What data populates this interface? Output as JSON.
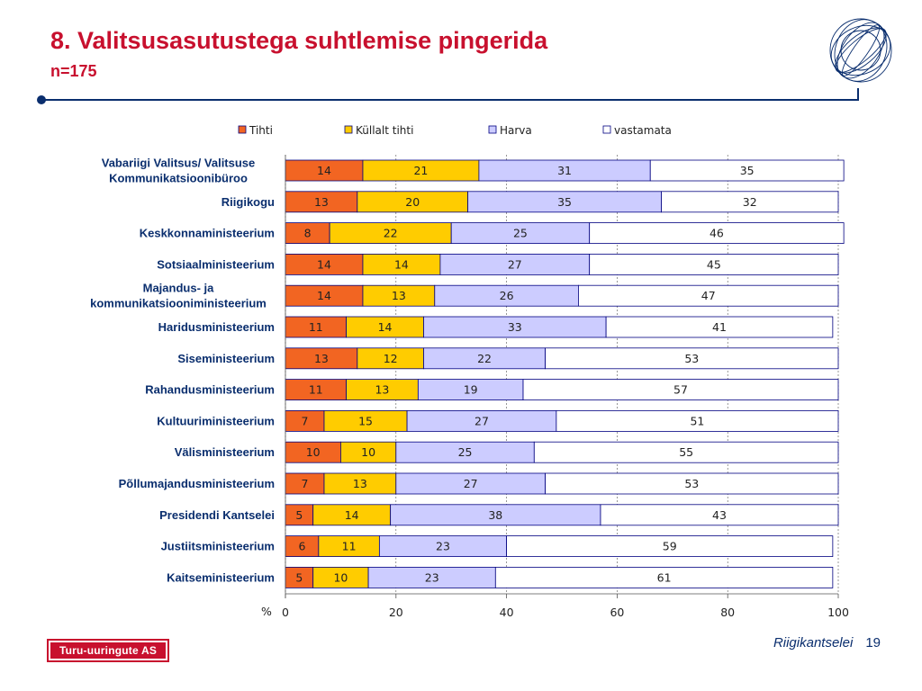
{
  "slide": {
    "title": "8. Valitsusasutustega suhtlemise pingerida",
    "subtitle": "n=175",
    "footer_org": "Riigikantselei",
    "page_number": "19",
    "logo_text": "Turu-uuringute AS"
  },
  "chart_data": {
    "type": "bar",
    "orientation": "horizontal",
    "stacked": true,
    "unit_label": "%",
    "xlim": [
      0,
      100
    ],
    "xticks": [
      0,
      20,
      40,
      60,
      80,
      100
    ],
    "legend_position": "top",
    "grid": "vertical",
    "categories": [
      [
        "Vabariigi Valitsus/ Valitsuse",
        "Kommunikatsioonibüroo"
      ],
      [
        "Riigikogu"
      ],
      [
        "Keskkonnaministeerium"
      ],
      [
        "Sotsiaalministeerium"
      ],
      [
        "Majandus- ja",
        "kommunikatsiooniministeerium"
      ],
      [
        "Haridusministeerium"
      ],
      [
        "Siseministeerium"
      ],
      [
        "Rahandusministeerium"
      ],
      [
        "Kultuuriministeerium"
      ],
      [
        "Välisministeerium"
      ],
      [
        "Põllumajandusministeerium"
      ],
      [
        "Presidendi Kantselei"
      ],
      [
        "Justiitsministeerium"
      ],
      [
        "Kaitseministeerium"
      ]
    ],
    "series": [
      {
        "name": "Tihti",
        "color": "#f26522",
        "values": [
          14,
          13,
          8,
          14,
          14,
          11,
          13,
          11,
          7,
          10,
          7,
          5,
          6,
          5
        ]
      },
      {
        "name": "Küllalt tihti",
        "color": "#ffcc00",
        "values": [
          21,
          20,
          22,
          14,
          13,
          14,
          12,
          13,
          15,
          10,
          13,
          14,
          11,
          10
        ]
      },
      {
        "name": "Harva",
        "color": "#ccccff",
        "values": [
          31,
          35,
          25,
          27,
          26,
          33,
          22,
          19,
          27,
          25,
          27,
          38,
          23,
          23
        ]
      },
      {
        "name": "vastamata",
        "color": "#ffffff",
        "values": [
          35,
          32,
          46,
          45,
          47,
          41,
          53,
          57,
          51,
          55,
          53,
          43,
          59,
          61
        ]
      }
    ]
  }
}
